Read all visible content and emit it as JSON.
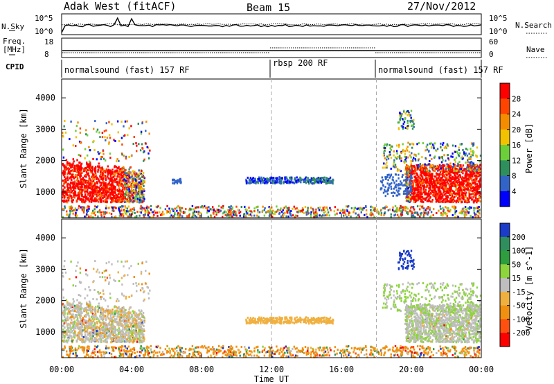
{
  "header": {
    "title": "Adak West (fitACF)",
    "beam": "Beam 15",
    "date": "27/Nov/2012"
  },
  "top_panels": {
    "nsky_label": "N.Sky",
    "nsky_ticks": [
      "10^5",
      "10^0"
    ],
    "nsearch_label": "N.Search",
    "nsearch_ticks": [
      "10^5",
      "10^0"
    ],
    "freq_label_1": "Freq.",
    "freq_label_2": "[MHz]",
    "freq_ticks": [
      "18",
      "8"
    ],
    "nave_label": "Nave",
    "nave_ticks": [
      "60",
      "0"
    ],
    "cpid_label": "CPID",
    "cpid_segments": [
      {
        "label": "normalsound (fast) 157 RF",
        "start_h": 0,
        "end_h": 12
      },
      {
        "label": "rbsp 200 RF",
        "start_h": 12,
        "end_h": 18
      },
      {
        "label": "normalsound (fast) 157 RF",
        "start_h": 18,
        "end_h": 24
      }
    ]
  },
  "chart_data": [
    {
      "type": "heatmap",
      "ylabel": "Slant Range [km]",
      "xlabel": "",
      "xlim": [
        0,
        24
      ],
      "ylim": [
        180,
        4600
      ],
      "y_ticks": [
        1000,
        2000,
        3000,
        4000
      ],
      "x_ticks_hours": [
        0,
        4,
        8,
        12,
        16,
        20,
        24
      ],
      "colorbar": {
        "label": "Power [dB]",
        "ticks": [
          "4",
          "8",
          "12",
          "16",
          "20",
          "24",
          "28"
        ],
        "colors": [
          "#0000ff",
          "#3264c8",
          "#2f8f5c",
          "#6ccf3a",
          "#f2c200",
          "#f58c00",
          "#ff4400",
          "#ff0000"
        ]
      }
    },
    {
      "type": "heatmap",
      "ylabel": "Slant Range [km]",
      "xlabel": "Time UT",
      "xlim": [
        0,
        24
      ],
      "ylim": [
        180,
        4600
      ],
      "y_ticks": [
        1000,
        2000,
        3000,
        4000
      ],
      "x_ticks": [
        "00:00",
        "04:00",
        "08:00",
        "12:00",
        "16:00",
        "20:00",
        "00:00"
      ],
      "x_ticks_hours": [
        0,
        4,
        8,
        12,
        16,
        20,
        24
      ],
      "colorbar": {
        "label": "Velocity [m s^-1]",
        "ticks": [
          "200",
          "100",
          "50",
          "15",
          "-15",
          "-50",
          "-100",
          "-200"
        ],
        "colors": [
          "#1a3cc8",
          "#2f8f5c",
          "#2e9d3e",
          "#8ed43c",
          "#bebebe",
          "#f0b040",
          "#f09010",
          "#ff5010",
          "#ff0000"
        ]
      }
    }
  ]
}
